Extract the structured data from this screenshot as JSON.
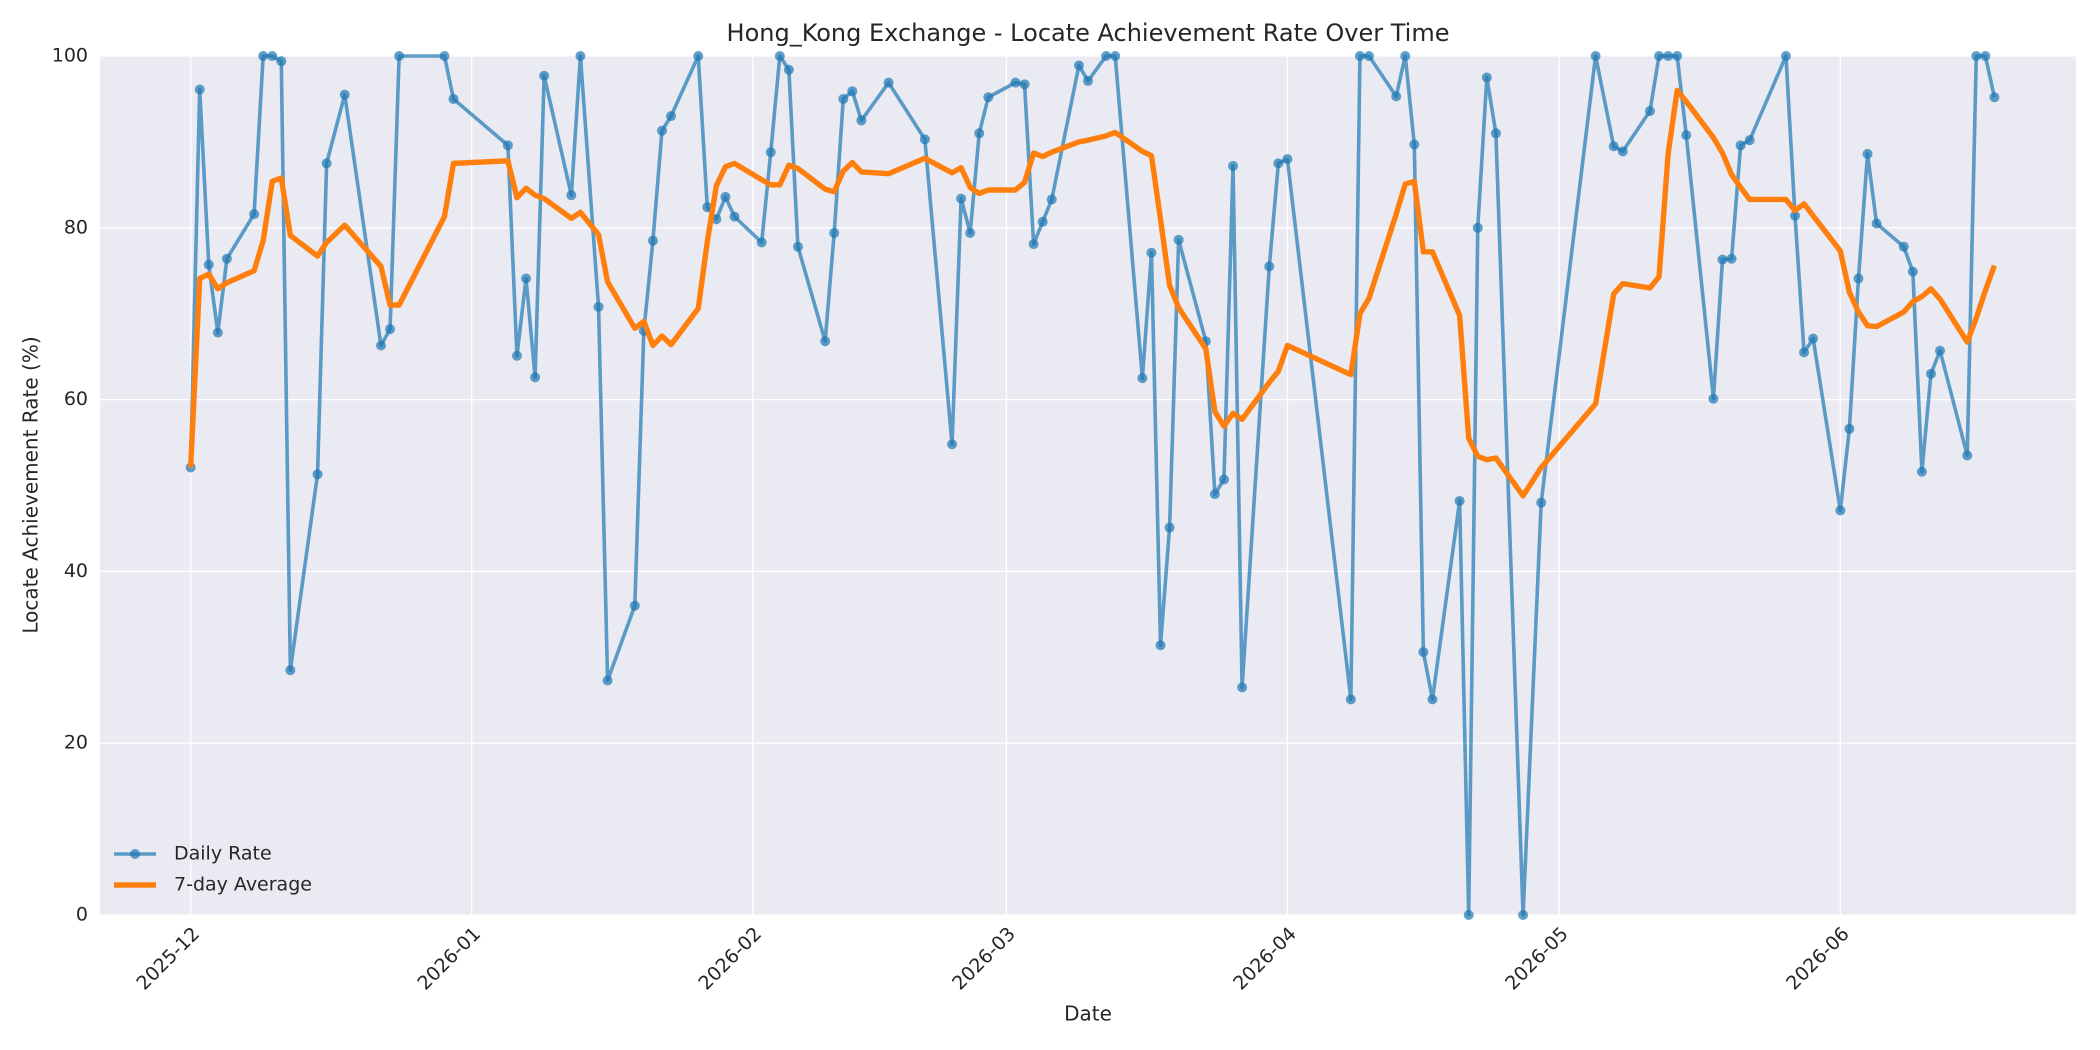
{
  "chart_data": {
    "type": "line",
    "title": "Hong_Kong Exchange - Locate Achievement Rate Over Time",
    "xlabel": "Date",
    "ylabel": "Locate Achievement Rate (%)",
    "x": [
      "2025-12-01",
      "2025-12-02",
      "2025-12-03",
      "2025-12-04",
      "2025-12-05",
      "2025-12-08",
      "2025-12-09",
      "2025-12-10",
      "2025-12-11",
      "2025-12-12",
      "2025-12-15",
      "2025-12-16",
      "2025-12-18",
      "2025-12-22",
      "2025-12-23",
      "2025-12-24",
      "2025-12-29",
      "2025-12-30",
      "2026-01-05",
      "2026-01-06",
      "2026-01-07",
      "2026-01-08",
      "2026-01-09",
      "2026-01-12",
      "2026-01-13",
      "2026-01-15",
      "2026-01-16",
      "2026-01-19",
      "2026-01-20",
      "2026-01-21",
      "2026-01-22",
      "2026-01-23",
      "2026-01-26",
      "2026-01-27",
      "2026-01-28",
      "2026-01-29",
      "2026-01-30",
      "2026-02-02",
      "2026-02-03",
      "2026-02-04",
      "2026-02-05",
      "2026-02-06",
      "2026-02-09",
      "2026-02-10",
      "2026-02-11",
      "2026-02-12",
      "2026-02-13",
      "2026-02-16",
      "2026-02-20",
      "2026-02-23",
      "2026-02-24",
      "2026-02-25",
      "2026-02-26",
      "2026-02-27",
      "2026-03-02",
      "2026-03-03",
      "2026-03-04",
      "2026-03-05",
      "2026-03-06",
      "2026-03-09",
      "2026-03-10",
      "2026-03-12",
      "2026-03-13",
      "2026-03-16",
      "2026-03-17",
      "2026-03-18",
      "2026-03-19",
      "2026-03-20",
      "2026-03-23",
      "2026-03-24",
      "2026-03-25",
      "2026-03-26",
      "2026-03-27",
      "2026-03-30",
      "2026-03-31",
      "2026-04-01",
      "2026-04-08",
      "2026-04-09",
      "2026-04-10",
      "2026-04-13",
      "2026-04-14",
      "2026-04-15",
      "2026-04-16",
      "2026-04-17",
      "2026-04-20",
      "2026-04-21",
      "2026-04-22",
      "2026-04-23",
      "2026-04-24",
      "2026-04-27",
      "2026-04-29",
      "2026-05-05",
      "2026-05-07",
      "2026-05-08",
      "2026-05-11",
      "2026-05-12",
      "2026-05-13",
      "2026-05-14",
      "2026-05-15",
      "2026-05-18",
      "2026-05-19",
      "2026-05-20",
      "2026-05-21",
      "2026-05-22",
      "2026-05-26",
      "2026-05-27",
      "2026-05-28",
      "2026-05-29",
      "2026-06-01",
      "2026-06-02",
      "2026-06-03",
      "2026-06-04",
      "2026-06-05",
      "2026-06-08",
      "2026-06-09",
      "2026-06-10",
      "2026-06-11",
      "2026-06-12",
      "2026-06-15",
      "2026-06-16",
      "2026-06-17",
      "2026-06-18"
    ],
    "series": [
      {
        "name": "Daily Rate",
        "color": "#1f77b4",
        "marker": "o",
        "values": [
          52.1,
          96.1,
          75.7,
          67.8,
          76.4,
          81.6,
          100,
          100,
          99.4,
          28.5,
          51.3,
          87.5,
          95.5,
          66.3,
          68.2,
          100,
          100,
          95,
          89.6,
          65.1,
          74.1,
          62.6,
          97.7,
          83.8,
          100,
          70.8,
          27.3,
          36,
          68,
          78.5,
          91.3,
          93,
          100,
          82.4,
          81,
          83.6,
          81.3,
          78.3,
          88.8,
          100,
          98.4,
          77.8,
          66.8,
          79.4,
          95,
          95.9,
          92.5,
          96.9,
          90.3,
          54.8,
          83.4,
          79.4,
          91,
          95.2,
          96.9,
          96.7,
          78.1,
          80.7,
          83.3,
          98.9,
          97.1,
          100,
          100,
          62.5,
          77.1,
          31.4,
          45.1,
          78.6,
          66.8,
          49,
          50.7,
          87.2,
          26.5,
          75.5,
          87.5,
          88,
          25.1,
          100,
          100,
          95.3,
          100,
          89.7,
          30.6,
          25.1,
          48.2,
          0,
          80,
          97.5,
          91,
          0,
          48,
          100,
          89.5,
          88.9,
          93.6,
          100,
          100,
          100,
          90.8,
          60.1,
          76.3,
          76.4,
          89.6,
          90.2,
          100,
          81.4,
          65.5,
          67.1,
          47.1,
          56.6,
          74.1,
          88.6,
          80.5,
          77.8,
          74.9,
          51.6,
          63,
          65.7,
          53.5,
          100,
          100,
          95.2
        ]
      },
      {
        "name": "7-day Average",
        "color": "#ff7f0e",
        "values": [
          52.1,
          74.1,
          74.6,
          72.9,
          73.6,
          75.0,
          78.5,
          85.4,
          85.8,
          79.1,
          76.7,
          78.3,
          80.3,
          75.5,
          71.0,
          71.0,
          81.3,
          87.5,
          87.8,
          83.5,
          84.6,
          83.8,
          83.4,
          81.1,
          81.8,
          79.2,
          73.7,
          68.3,
          69.1,
          66.3,
          67.4,
          66.4,
          70.6,
          78.4,
          84.9,
          87.1,
          87.5,
          85.6,
          85.0,
          85.0,
          87.3,
          86.9,
          84.5,
          84.2,
          86.6,
          87.6,
          86.5,
          86.3,
          88.1,
          86.4,
          87.0,
          84.7,
          84.0,
          84.4,
          84.4,
          85.3,
          88.7,
          88.3,
          88.8,
          90.0,
          90.2,
          90.7,
          91.1,
          88.9,
          88.4,
          81.0,
          73.3,
          70.7,
          65.9,
          58.6,
          56.9,
          58.4,
          57.7,
          62.0,
          63.3,
          66.3,
          62.9,
          70.0,
          71.8,
          81.6,
          85.1,
          85.4,
          77.2,
          77.2,
          69.8,
          55.5,
          53.4,
          53.0,
          53.2,
          48.8,
          52.1,
          59.5,
          72.3,
          73.5,
          73.0,
          74.3,
          88.6,
          96.0,
          94.7,
          90.5,
          88.7,
          86.2,
          84.7,
          83.3,
          83.3,
          82.0,
          82.8,
          81.4,
          77.3,
          72.5,
          70.2,
          68.6,
          68.5,
          70.2,
          71.4,
          72.0,
          72.9,
          71.7,
          66.7,
          69.5,
          72.7,
          75.6
        ]
      }
    ],
    "xlim": [
      "2025-11-21",
      "2026-06-27"
    ],
    "xticks": [
      {
        "value": "2025-12-01",
        "label": "2025-12"
      },
      {
        "value": "2026-01-01",
        "label": "2026-01"
      },
      {
        "value": "2026-02-01",
        "label": "2026-02"
      },
      {
        "value": "2026-03-01",
        "label": "2026-03"
      },
      {
        "value": "2026-04-01",
        "label": "2026-04"
      },
      {
        "value": "2026-05-01",
        "label": "2026-05"
      },
      {
        "value": "2026-06-01",
        "label": "2026-06"
      }
    ],
    "ylim": [
      0,
      100
    ],
    "yticks": [
      0,
      20,
      40,
      60,
      80,
      100
    ],
    "grid": true,
    "legend": "lower left"
  }
}
